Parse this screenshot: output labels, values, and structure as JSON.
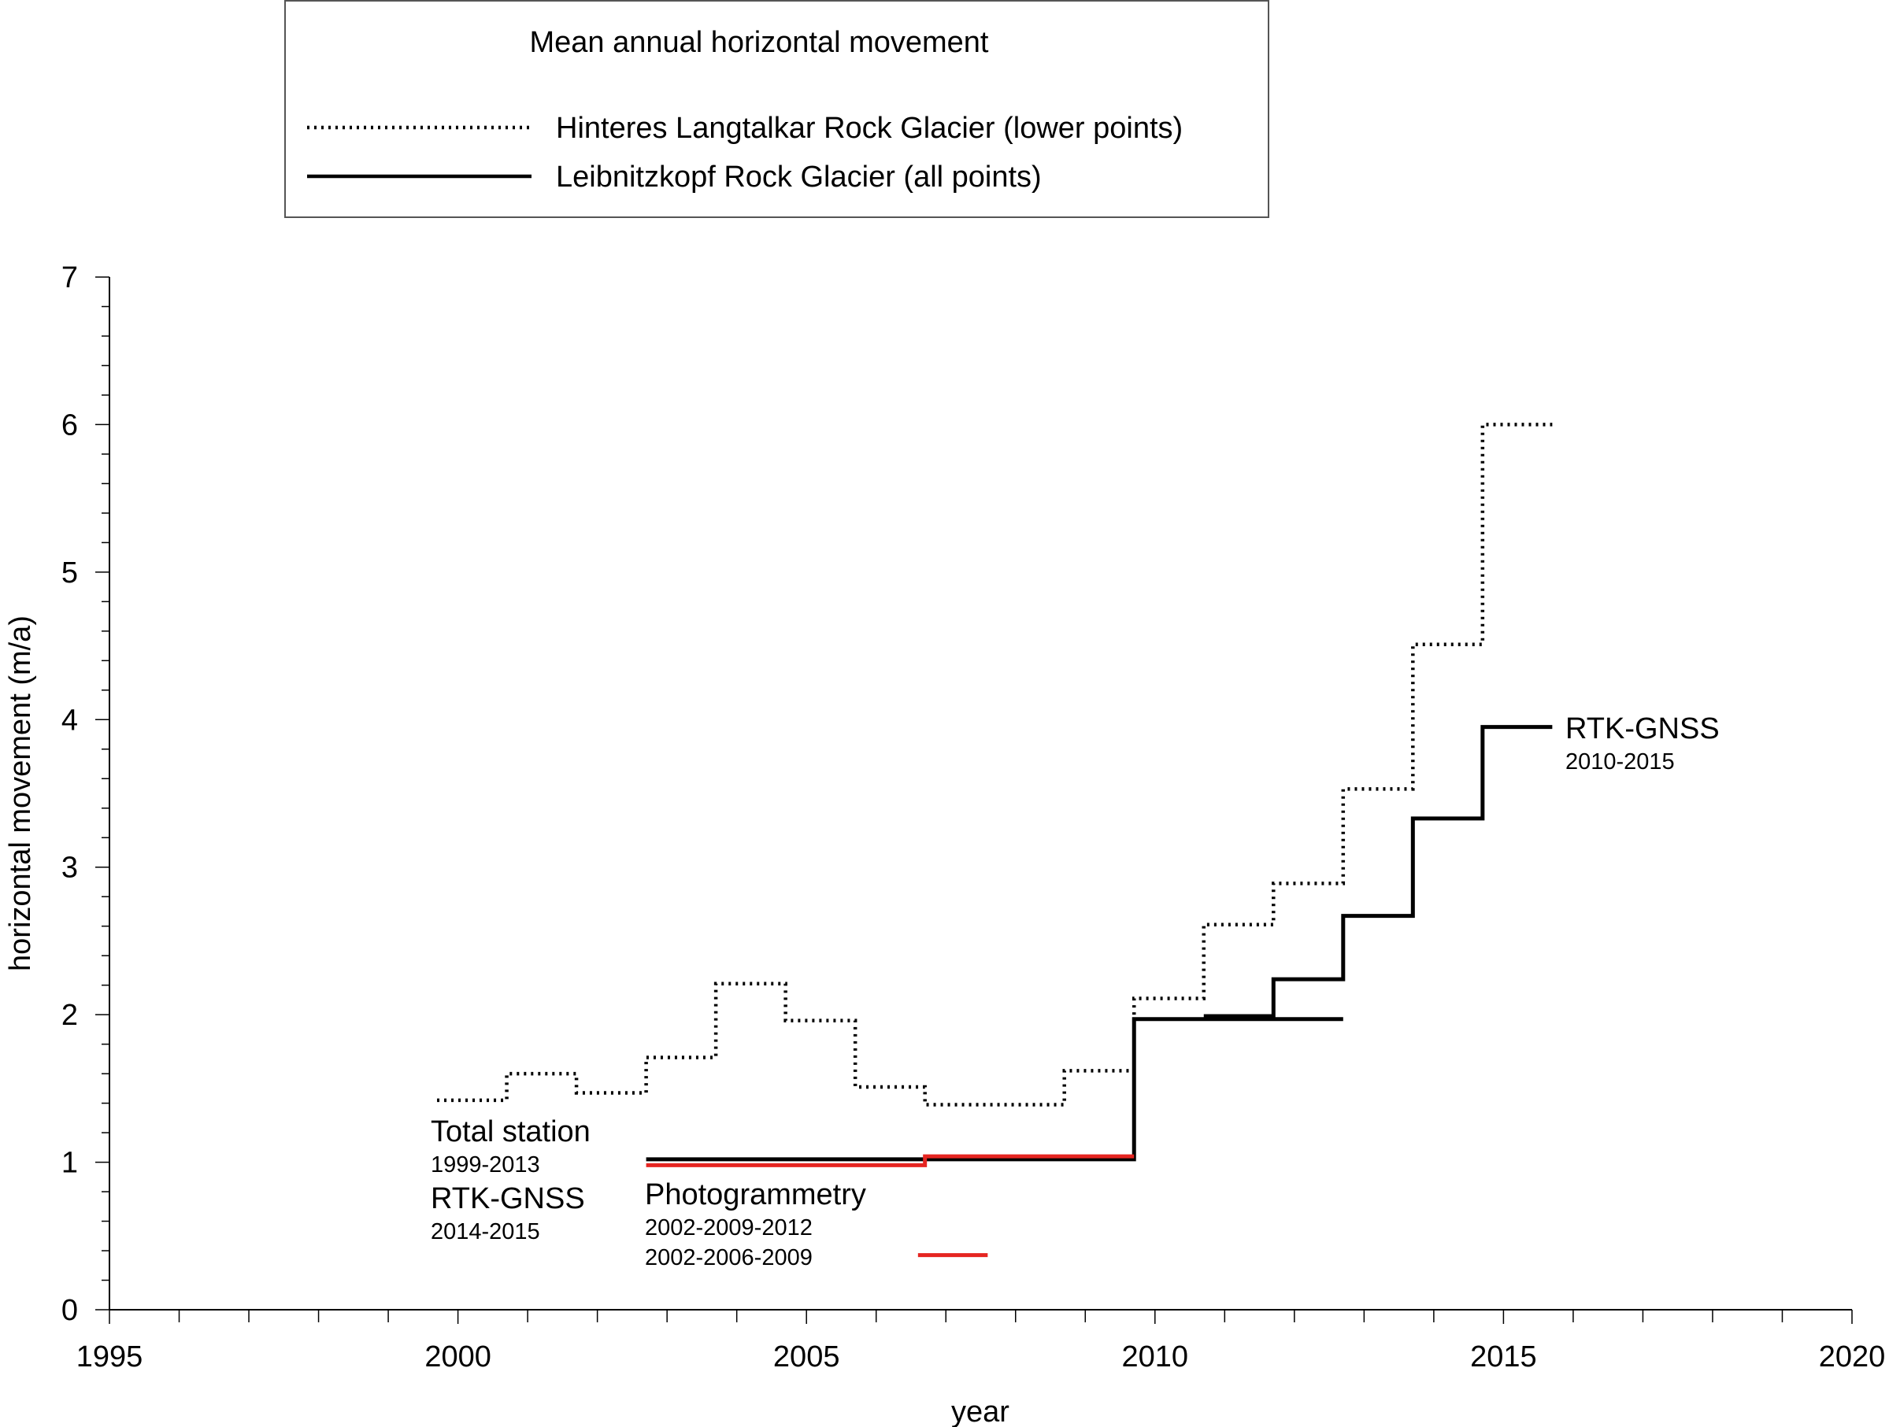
{
  "chart_data": {
    "type": "line",
    "step": true,
    "xlabel": "year",
    "ylabel": "horizontal movement (m/a)",
    "xlim": [
      1995,
      2020
    ],
    "ylim": [
      0,
      7
    ],
    "x_ticks": [
      1995,
      2000,
      2005,
      2010,
      2015,
      2020
    ],
    "y_ticks": [
      0,
      1,
      2,
      3,
      4,
      5,
      6,
      7
    ],
    "x_minor_step": 1,
    "y_minor_step": 0.2,
    "grid": false,
    "legend": {
      "title": "Mean annual horizontal movement",
      "placement": "top",
      "entries": [
        {
          "label": "Hinteres Langtalkar Rock Glacier (lower points)",
          "style": "dotted",
          "color": "#000000"
        },
        {
          "label": "Leibnitzkopf Rock Glacier (all points)",
          "style": "solid",
          "color": "#000000"
        }
      ]
    },
    "series": [
      {
        "name": "Hinteres Langtalkar Rock Glacier (lower points)",
        "style": "dotted",
        "color": "#000000",
        "steps": [
          {
            "x0": 1999.7,
            "x1": 2000.7,
            "y": 1.42
          },
          {
            "x0": 2000.7,
            "x1": 2001.7,
            "y": 1.6
          },
          {
            "x0": 2001.7,
            "x1": 2002.7,
            "y": 1.47
          },
          {
            "x0": 2002.7,
            "x1": 2003.7,
            "y": 1.71
          },
          {
            "x0": 2003.7,
            "x1": 2004.7,
            "y": 2.21
          },
          {
            "x0": 2004.7,
            "x1": 2005.7,
            "y": 1.96
          },
          {
            "x0": 2005.7,
            "x1": 2006.7,
            "y": 1.51
          },
          {
            "x0": 2006.7,
            "x1": 2008.7,
            "y": 1.39
          },
          {
            "x0": 2008.7,
            "x1": 2009.7,
            "y": 1.62
          },
          {
            "x0": 2009.7,
            "x1": 2010.7,
            "y": 2.11
          },
          {
            "x0": 2010.7,
            "x1": 2011.7,
            "y": 2.61
          },
          {
            "x0": 2011.7,
            "x1": 2012.7,
            "y": 2.89
          },
          {
            "x0": 2012.7,
            "x1": 2013.7,
            "y": 3.53
          },
          {
            "x0": 2013.7,
            "x1": 2014.7,
            "y": 4.51
          },
          {
            "x0": 2014.7,
            "x1": 2015.7,
            "y": 6.0
          }
        ]
      },
      {
        "name": "Leibnitzkopf Rock Glacier (all points)",
        "style": "solid",
        "color": "#000000",
        "steps": [
          {
            "x0": 2002.7,
            "x1": 2009.7,
            "y": 1.02
          },
          {
            "x0": 2009.7,
            "x1": 2012.7,
            "y": 1.97
          }
        ]
      },
      {
        "style": "solid",
        "color": "#000000",
        "steps": [
          {
            "x0": 2010.7,
            "x1": 2011.7,
            "y": 1.99
          },
          {
            "x0": 2011.7,
            "x1": 2012.7,
            "y": 2.24
          },
          {
            "x0": 2012.7,
            "x1": 2013.7,
            "y": 2.67
          },
          {
            "x0": 2013.7,
            "x1": 2014.7,
            "y": 3.33
          },
          {
            "x0": 2014.7,
            "x1": 2015.7,
            "y": 3.95
          }
        ]
      },
      {
        "style": "solid",
        "color": "#e52521",
        "steps": [
          {
            "x0": 2002.7,
            "x1": 2006.7,
            "y": 0.98
          },
          {
            "x0": 2006.7,
            "x1": 2009.7,
            "y": 1.04
          }
        ]
      }
    ],
    "annotations": [
      {
        "id": "total-station",
        "text": "Total station",
        "sub": "1999-2013",
        "x": 1999.6,
        "y": 1.2
      },
      {
        "id": "rtk-gnss-early",
        "text": "RTK-GNSS",
        "sub": "2014-2015",
        "x": 1999.6,
        "y": 0.75
      },
      {
        "id": "photogrammetry",
        "text": "Photogrammetry",
        "sub": "2002-2009-2012",
        "sub2": "2002-2006-2009",
        "x": 2002.7,
        "y": 0.74
      },
      {
        "id": "rtk-gnss-late",
        "text": "RTK-GNSS",
        "sub": "2010-2015",
        "x": 2015.9,
        "y": 3.95
      }
    ],
    "red_legend_sample": {
      "color": "#e52521",
      "x0": 2006.6,
      "x1": 2007.6,
      "y": 0.37
    }
  }
}
